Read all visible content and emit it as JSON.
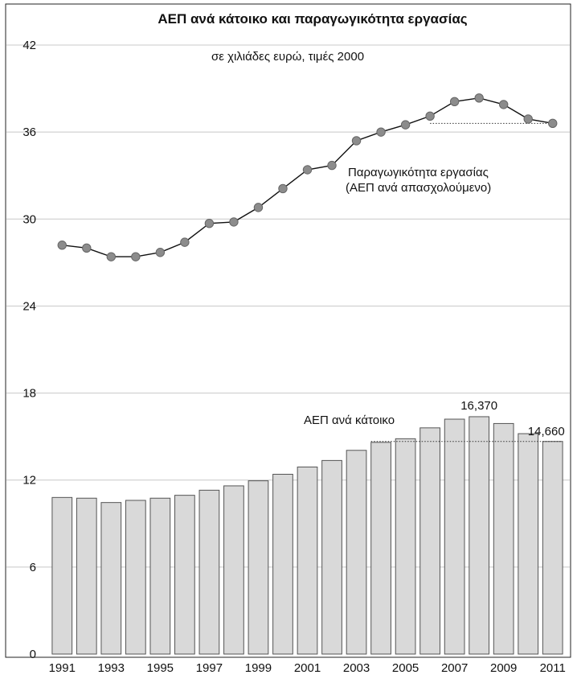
{
  "chart_data": {
    "type": "bar+line",
    "title": "ΑΕΠ ανά κάτοικο και παραγωγικότητα εργασίας",
    "subtitle": "σε χιλιάδες ευρώ, τιμές 2000",
    "x": [
      1991,
      1992,
      1993,
      1994,
      1995,
      1996,
      1997,
      1998,
      1999,
      2000,
      2001,
      2002,
      2003,
      2004,
      2005,
      2006,
      2007,
      2008,
      2009,
      2010,
      2011
    ],
    "x_tick_labels": [
      "1991",
      "1993",
      "1995",
      "1997",
      "1999",
      "2001",
      "2003",
      "2005",
      "2007",
      "2009",
      "2011"
    ],
    "y_ticks": [
      0,
      6,
      12,
      18,
      24,
      30,
      36,
      42
    ],
    "ylim": [
      0,
      42
    ],
    "grid": true,
    "series": [
      {
        "name": "ΑΕΠ ανά κάτοικο",
        "kind": "bar",
        "values": [
          10.8,
          10.75,
          10.45,
          10.6,
          10.75,
          10.95,
          11.3,
          11.6,
          11.95,
          12.4,
          12.9,
          13.35,
          14.05,
          14.6,
          14.85,
          15.6,
          16.2,
          16.37,
          15.9,
          15.2,
          14.66
        ]
      },
      {
        "name": "Παραγωγικότητα εργασίας",
        "name_line2": "(ΑΕΠ ανά απασχολούμενο)",
        "kind": "line",
        "values": [
          28.2,
          28.0,
          27.4,
          27.4,
          27.7,
          28.4,
          29.7,
          29.8,
          30.8,
          32.1,
          33.4,
          33.7,
          35.4,
          36.0,
          36.5,
          37.1,
          38.1,
          38.35,
          37.9,
          36.9,
          36.6
        ]
      }
    ],
    "annotations": {
      "bar_peak_label": "16,370",
      "bar_last_label": "14,660"
    },
    "colors": {
      "bar": "#d9d9d9",
      "point": "#8c8c8c",
      "grid": "#c8c8c8"
    }
  }
}
